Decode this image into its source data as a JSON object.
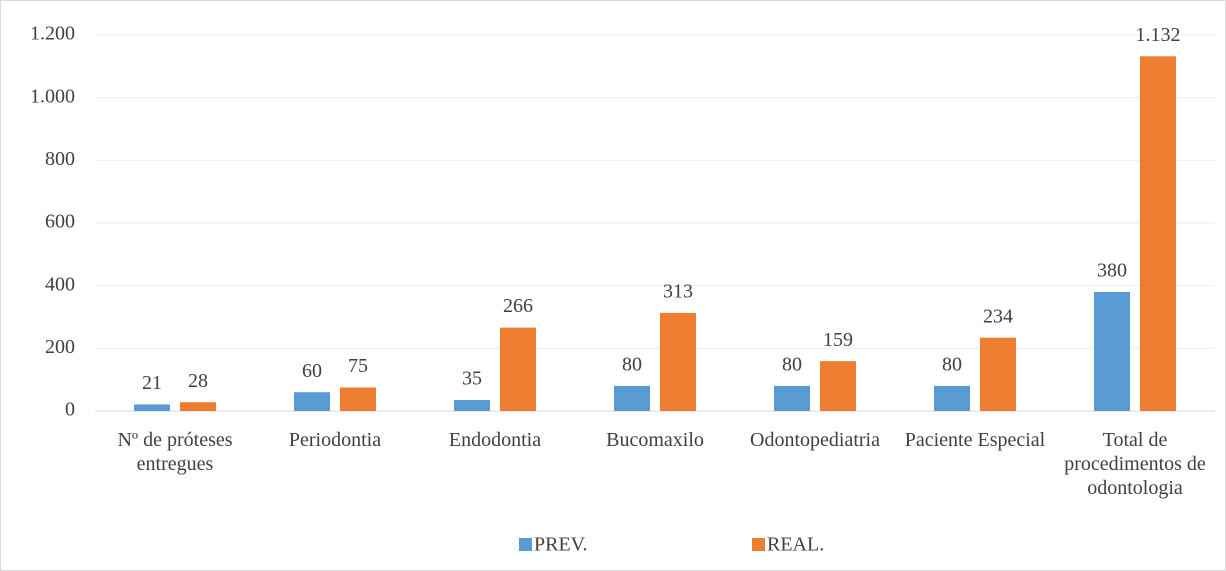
{
  "chart_data": {
    "type": "bar",
    "categories": [
      "Nº de próteses entregues",
      "Periodontia",
      "Endodontia",
      "Bucomaxilo",
      "Odontopediatria",
      "Paciente Especial",
      "Total de procedimentos de odontologia"
    ],
    "series": [
      {
        "name": "PREV.",
        "color": "#5b9bd5",
        "values": [
          21,
          60,
          35,
          80,
          80,
          80,
          380
        ]
      },
      {
        "name": "REAL.",
        "color": "#ed7d31",
        "values": [
          28,
          75,
          266,
          313,
          159,
          234,
          1132
        ],
        "value_labels": [
          "28",
          "75",
          "266",
          "313",
          "159",
          "234",
          "1.132"
        ]
      }
    ],
    "ylim": [
      0,
      1200
    ],
    "yticks": [
      0,
      200,
      400,
      600,
      800,
      {
        "value": 1000,
        "label": "1.000"
      },
      {
        "value": 1200,
        "label": "1.200"
      }
    ],
    "grid": true,
    "legend": "bottom"
  }
}
